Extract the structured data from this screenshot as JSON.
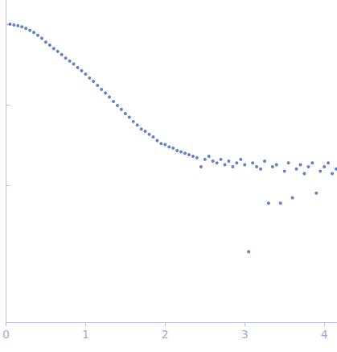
{
  "chart_data": {
    "type": "scatter",
    "color": "#3b63b8",
    "marker": "circle",
    "log": "y",
    "grid": false,
    "tick_labels": "x",
    "xlim": [
      0,
      4.16
    ],
    "xticks": [
      0,
      1,
      2,
      3,
      4
    ],
    "ylim": [
      0.0002,
      2
    ],
    "yticks": [
      {
        "value": 0.01,
        "label": ""
      },
      {
        "value": 0.1,
        "label": ""
      },
      {
        "value": 1,
        "label": ""
      }
    ],
    "x": [
      0.05,
      0.1,
      0.15,
      0.2,
      0.25,
      0.3,
      0.35,
      0.4,
      0.45,
      0.5,
      0.55,
      0.6,
      0.65,
      0.7,
      0.75,
      0.8,
      0.85,
      0.9,
      0.95,
      1.0,
      1.05,
      1.1,
      1.15,
      1.2,
      1.25,
      1.3,
      1.35,
      1.4,
      1.45,
      1.5,
      1.55,
      1.6,
      1.65,
      1.7,
      1.75,
      1.8,
      1.85,
      1.9,
      1.95,
      2.0,
      2.05,
      2.1,
      2.15,
      2.2,
      2.25,
      2.3,
      2.35,
      2.4,
      2.45,
      2.5,
      2.55,
      2.6,
      2.65,
      2.7,
      2.75,
      2.8,
      2.85,
      2.9,
      2.95,
      3.0,
      3.05,
      3.1,
      3.15,
      3.2,
      3.25,
      3.3,
      3.35,
      3.4,
      3.45,
      3.5,
      3.55,
      3.6,
      3.65,
      3.7,
      3.75,
      3.8,
      3.85,
      3.9,
      3.95,
      4.0,
      4.05,
      4.1,
      4.15
    ],
    "values": [
      1.0,
      0.98,
      0.96,
      0.93,
      0.89,
      0.84,
      0.79,
      0.73,
      0.67,
      0.6,
      0.55,
      0.5,
      0.46,
      0.42,
      0.38,
      0.35,
      0.32,
      0.29,
      0.265,
      0.24,
      0.215,
      0.195,
      0.174,
      0.155,
      0.14,
      0.125,
      0.11,
      0.098,
      0.088,
      0.078,
      0.07,
      0.062,
      0.056,
      0.05,
      0.047,
      0.043,
      0.04,
      0.036,
      0.033,
      0.032,
      0.03,
      0.029,
      0.027,
      0.026,
      0.025,
      0.024,
      0.023,
      0.022,
      0.017,
      0.021,
      0.023,
      0.02,
      0.019,
      0.021,
      0.018,
      0.02,
      0.017,
      0.019,
      0.021,
      0.018,
      0.0015,
      0.019,
      0.017,
      0.016,
      0.02,
      0.006,
      0.017,
      0.018,
      0.006,
      0.015,
      0.019,
      0.007,
      0.016,
      0.018,
      0.014,
      0.017,
      0.019,
      0.008,
      0.015,
      0.017,
      0.019,
      0.014,
      0.016
    ]
  }
}
